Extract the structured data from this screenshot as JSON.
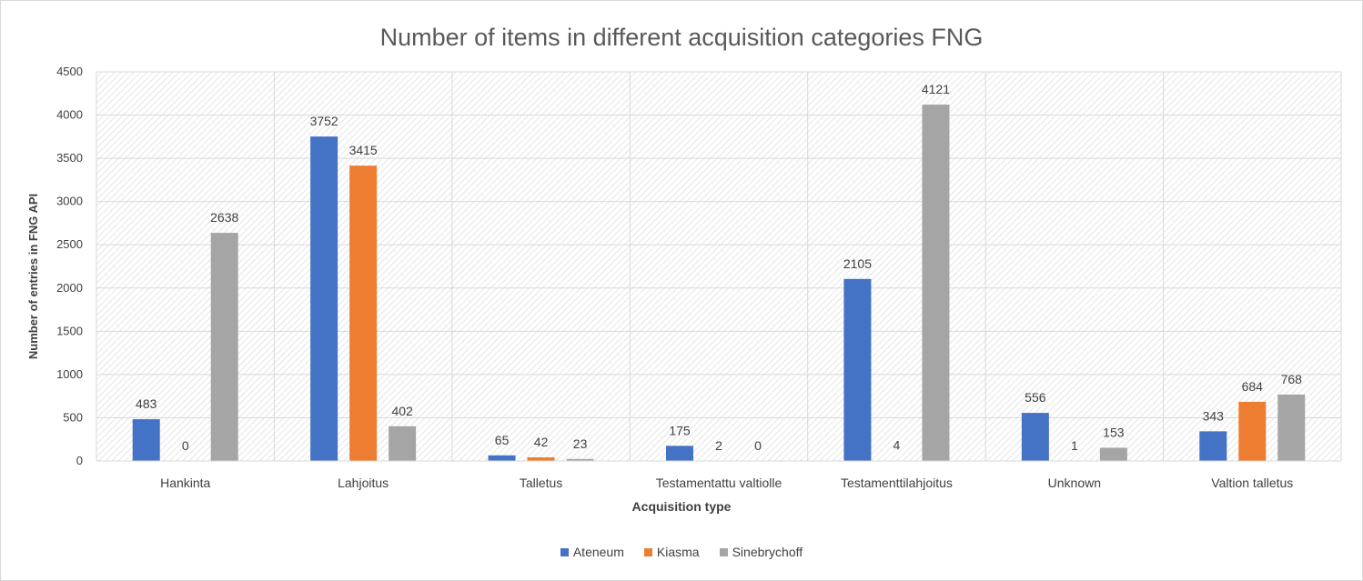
{
  "chart_data": {
    "type": "bar",
    "title": "Number of items in different acquisition categories FNG",
    "xlabel": "Acquisition type",
    "ylabel": "Number of entries in FNG API",
    "ylim": [
      0,
      4500
    ],
    "yticks": [
      0,
      500,
      1000,
      1500,
      2000,
      2500,
      3000,
      3500,
      4000,
      4500
    ],
    "grid": true,
    "legend_position": "bottom",
    "categories": [
      "Hankinta",
      "Lahjoitus",
      "Talletus",
      "Testamentattu valtiolle",
      "Testamenttilahjoitus",
      "Unknown",
      "Valtion talletus"
    ],
    "series": [
      {
        "name": "Ateneum",
        "color": "#4472c4",
        "values": [
          483,
          3752,
          65,
          175,
          2105,
          556,
          343
        ]
      },
      {
        "name": "Kiasma",
        "color": "#ed7d31",
        "values": [
          0,
          3415,
          42,
          2,
          4,
          1,
          684
        ]
      },
      {
        "name": "Sinebrychoff",
        "color": "#a5a5a5",
        "values": [
          2638,
          402,
          23,
          0,
          4121,
          153,
          768
        ]
      }
    ]
  }
}
